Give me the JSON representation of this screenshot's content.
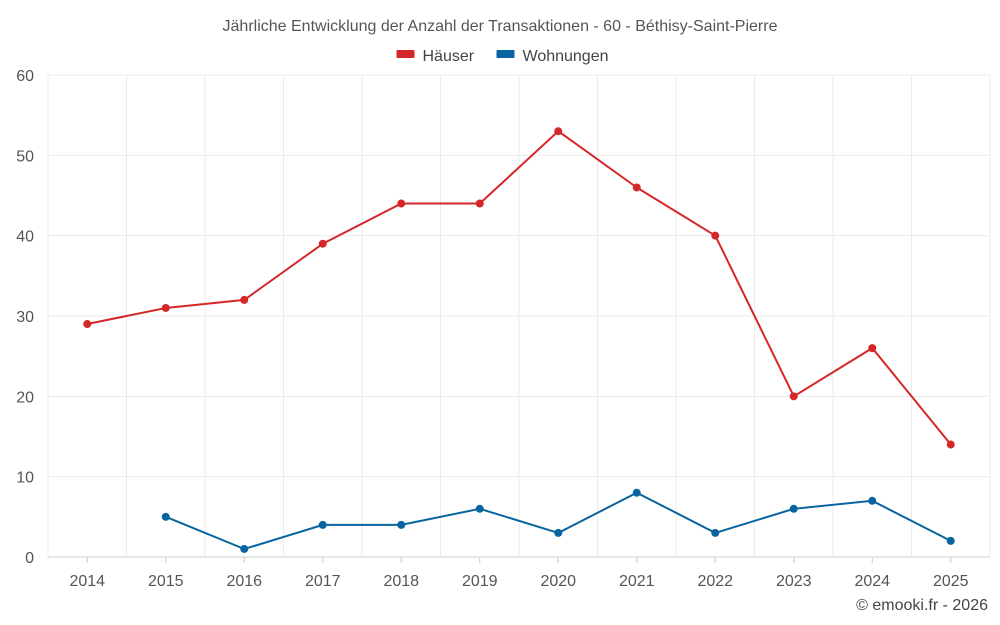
{
  "chart_data": {
    "type": "line",
    "title": "Jährliche Entwicklung der Anzahl der Transaktionen - 60 - Béthisy-Saint-Pierre",
    "categories": [
      "2014",
      "2015",
      "2016",
      "2017",
      "2018",
      "2019",
      "2020",
      "2021",
      "2022",
      "2023",
      "2024",
      "2025"
    ],
    "ylim": [
      0,
      60
    ],
    "yticks": [
      0,
      10,
      20,
      30,
      40,
      50,
      60
    ],
    "grid": true,
    "legend_position": "top-center",
    "series": [
      {
        "name": "Häuser",
        "color": "#d62728",
        "values": [
          29,
          31,
          32,
          39,
          44,
          44,
          53,
          46,
          40,
          20,
          26,
          14
        ]
      },
      {
        "name": "Wohnungen",
        "color": "#08649e",
        "values": [
          null,
          5,
          1,
          4,
          4,
          6,
          3,
          8,
          3,
          6,
          7,
          2
        ]
      }
    ]
  },
  "credit": "© emooki.fr - 2026"
}
